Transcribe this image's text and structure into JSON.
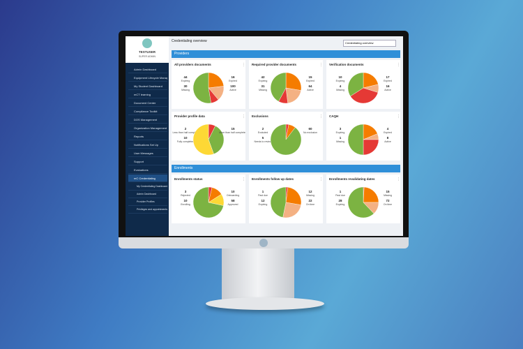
{
  "sidebar": {
    "user_name": "TESTUSER",
    "user_role": "SUPER ADMIN",
    "items": [
      "Admin Dashboard",
      "Equipment Lifecycle Management",
      "My Student Dashboard",
      "mCT learning",
      "Document Center",
      "Compliance Toolkit",
      "DOS Management",
      "Organization Management",
      "Reports",
      "Notifications Set Up",
      "User Messages",
      "Support",
      "Evaluations"
    ],
    "expanded": {
      "label": "mC Credentialing",
      "children": [
        "My Credentialing Dashboard",
        "Admin Dashboard",
        "Provider Profiles",
        "Privileges and appointments"
      ]
    }
  },
  "header": {
    "title": "Credentialing overview",
    "select": "Credentialing overview"
  },
  "sections": [
    {
      "title": "Providers",
      "cards": [
        {
          "title": "All providers documents",
          "slices": [
            {
              "label": "Expiring",
              "value": 44,
              "color": "#f57c00"
            },
            {
              "label": "Missing",
              "value": 30,
              "color": "#f4b183"
            },
            {
              "label": "Expired",
              "value": 16,
              "color": "#e53935"
            },
            {
              "label": "Active",
              "value": 100,
              "color": "#7cb342"
            }
          ]
        },
        {
          "title": "Required provider documents",
          "slices": [
            {
              "label": "Expiring",
              "value": 42,
              "color": "#f57c00"
            },
            {
              "label": "Missing",
              "value": 31,
              "color": "#f4b183"
            },
            {
              "label": "Expired",
              "value": 15,
              "color": "#e53935"
            },
            {
              "label": "Active",
              "value": 64,
              "color": "#7cb342"
            }
          ]
        },
        {
          "title": "Verification documents",
          "slices": [
            {
              "label": "Expiring",
              "value": 10,
              "color": "#f57c00"
            },
            {
              "label": "Missing",
              "value": 4,
              "color": "#f4b183"
            },
            {
              "label": "Expired",
              "value": 17,
              "color": "#e53935"
            },
            {
              "label": "Active",
              "value": 16,
              "color": "#7cb342"
            }
          ]
        },
        {
          "title": "Provider profile data",
          "slices": [
            {
              "label": "Less than half complete",
              "value": 2,
              "color": "#e53935"
            },
            {
              "label": "Fully completed",
              "value": 10,
              "color": "#7cb342"
            },
            {
              "label": "More than half completed",
              "value": 15,
              "color": "#fdd835"
            }
          ]
        },
        {
          "title": "Exclusions",
          "slices": [
            {
              "label": "Excluded",
              "value": 2,
              "color": "#e53935"
            },
            {
              "label": "Needs to review",
              "value": 5,
              "color": "#f57c00"
            },
            {
              "label": "No exclusion",
              "value": 60,
              "color": "#7cb342"
            }
          ]
        },
        {
          "title": "CAQH",
          "slices": [
            {
              "label": "Expiring",
              "value": 3,
              "color": "#f57c00"
            },
            {
              "label": "Missing",
              "value": 1,
              "color": "#f4b183"
            },
            {
              "label": "Expired",
              "value": 4,
              "color": "#e53935"
            },
            {
              "label": "Active",
              "value": 8,
              "color": "#7cb342"
            }
          ]
        }
      ]
    },
    {
      "title": "Enrollments",
      "cards": [
        {
          "title": "Enrollments status",
          "slices": [
            {
              "label": "Rejected",
              "value": 3,
              "color": "#e53935"
            },
            {
              "label": "Enrolling",
              "value": 10,
              "color": "#f57c00"
            },
            {
              "label": "Onboarding",
              "value": 10,
              "color": "#fdd835"
            },
            {
              "label": "Approved",
              "value": 58,
              "color": "#7cb342"
            }
          ]
        },
        {
          "title": "Enrollments follow up dates",
          "slices": [
            {
              "label": "Past due",
              "value": 1,
              "color": "#e53935"
            },
            {
              "label": "Expiring",
              "value": 12,
              "color": "#f57c00"
            },
            {
              "label": "Missing",
              "value": 12,
              "color": "#f4b183"
            },
            {
              "label": "On time",
              "value": 22,
              "color": "#7cb342"
            }
          ]
        },
        {
          "title": "Enrollments revalidating dates",
          "slices": [
            {
              "label": "Past due",
              "value": 1,
              "color": "#e53935"
            },
            {
              "label": "Expiring",
              "value": 28,
              "color": "#f57c00"
            },
            {
              "label": "Missing",
              "value": 15,
              "color": "#f4b183"
            },
            {
              "label": "On time",
              "value": 72,
              "color": "#7cb342"
            }
          ]
        }
      ]
    }
  ]
}
